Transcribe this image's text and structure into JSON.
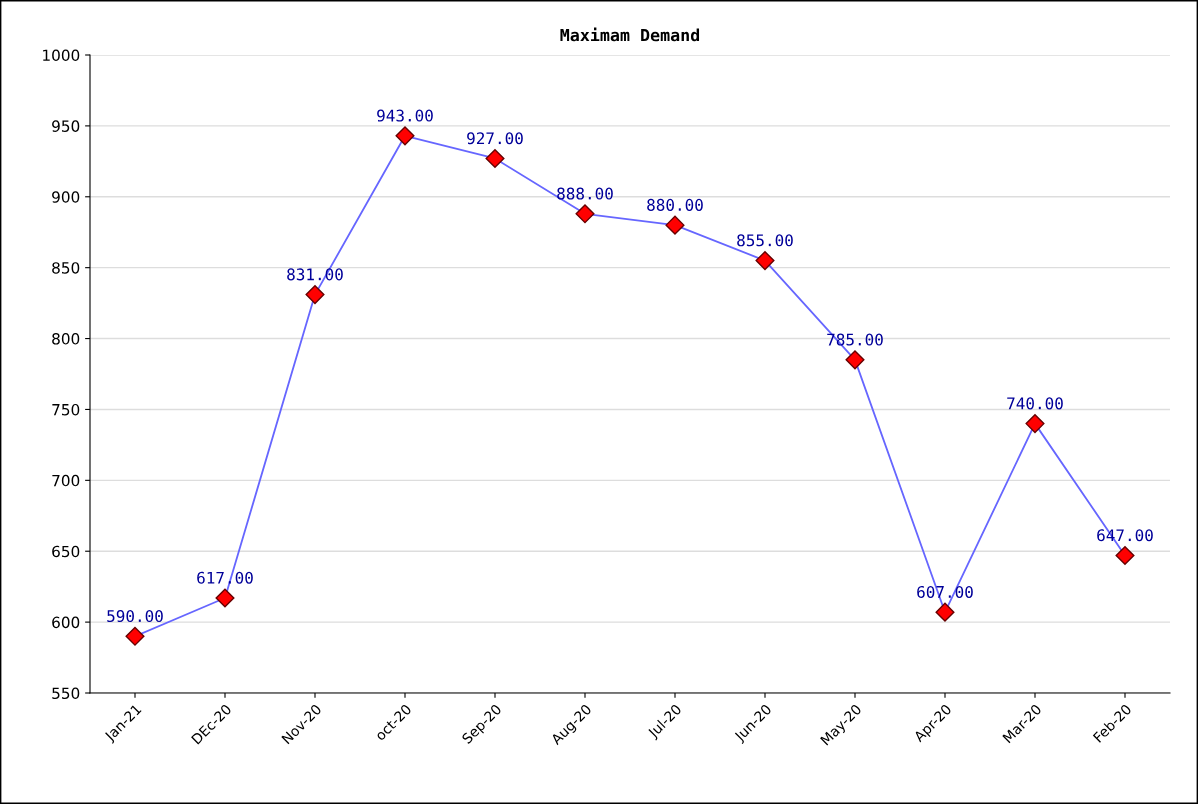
{
  "chart_data": {
    "type": "line",
    "title": "Maximam Demand",
    "categories": [
      "Jan-21",
      "DEc-20",
      "Nov-20",
      "oct-20",
      "Sep-20",
      "Aug-20",
      "Jul-20",
      "Jun-20",
      "May-20",
      "Apr-20",
      "Mar-20",
      "Feb-20"
    ],
    "series": [
      {
        "color": "#6666ff",
        "colors": [
          "#ff0000",
          "#ff0000",
          "#ff0000",
          "#ff0000",
          "#ff0000",
          "#ff0000",
          "#ff0000",
          "#ff0000",
          "#ff0000",
          "#ff0000",
          "#ff0000",
          "#ff0000"
        ],
        "values": [
          590,
          617,
          831,
          943,
          927,
          888,
          880,
          855,
          785,
          607,
          740,
          647
        ],
        "value_labels": [
          "590.00",
          "617.00",
          "831.00",
          "943.00",
          "927.00",
          "888.00",
          "880.00",
          "855.00",
          "785.00",
          "607.00",
          "740.00",
          "647.00"
        ]
      }
    ],
    "ylim": [
      550,
      1000
    ],
    "yticks": [
      550,
      600,
      650,
      700,
      750,
      800,
      850,
      900,
      950,
      1000
    ],
    "grid": "y",
    "marker": "diamond",
    "line_style": "solid",
    "legend": false
  }
}
